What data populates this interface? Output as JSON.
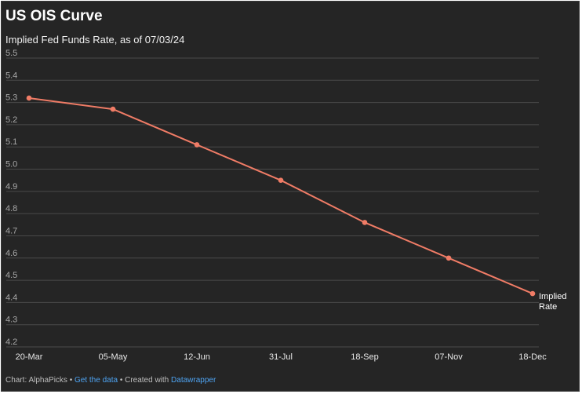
{
  "title": "US OIS Curve",
  "subtitle": "Implied Fed Funds Rate, as of 07/03/24",
  "footer": {
    "source_prefix": "Chart: AlphaPicks",
    "sep1": " • ",
    "get_data": "Get the data",
    "sep2": " • Created with ",
    "tool": "Datawrapper"
  },
  "colors": {
    "background": "#252525",
    "line": "#f07c66",
    "grid": "#4a4a4a",
    "link": "#4ea3f1"
  },
  "chart_data": {
    "type": "line",
    "title": "US OIS Curve",
    "subtitle": "Implied Fed Funds Rate, as of 07/03/24",
    "x": [
      "20-Mar",
      "05-May",
      "12-Jun",
      "31-Jul",
      "18-Sep",
      "07-Nov",
      "18-Dec"
    ],
    "series": [
      {
        "name": "Implied Rate",
        "values": [
          5.32,
          5.27,
          5.11,
          4.95,
          4.76,
          4.6,
          4.44
        ]
      }
    ],
    "ylim": [
      4.2,
      5.5
    ],
    "yticks": [
      4.2,
      4.3,
      4.4,
      4.5,
      4.6,
      4.7,
      4.8,
      4.9,
      5.0,
      5.1,
      5.2,
      5.3,
      5.4,
      5.5
    ],
    "ytick_labels": [
      "4.2",
      "4.3",
      "4.4",
      "4.5",
      "4.6",
      "4.7",
      "4.8",
      "4.9",
      "5.0",
      "5.1",
      "5.2",
      "5.3",
      "5.4",
      "5.5"
    ],
    "series_label_lines": [
      "Implied",
      "Rate"
    ],
    "grid": true,
    "legend": "none"
  }
}
